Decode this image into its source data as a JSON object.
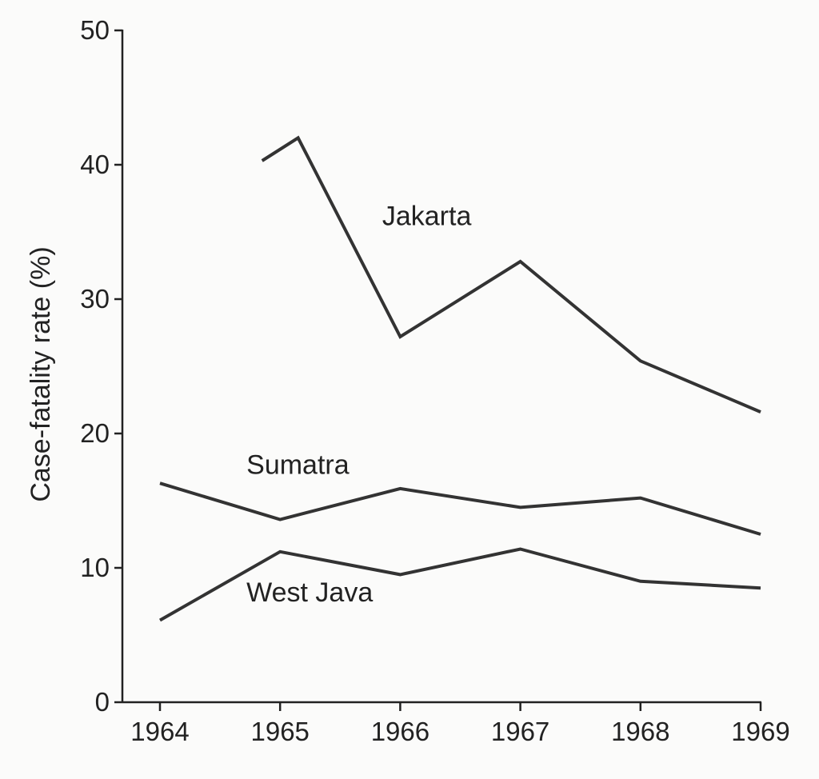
{
  "chart_data": {
    "type": "line",
    "title": "",
    "xlabel": "",
    "ylabel": "Case-fatality rate (%)",
    "x": [
      1964,
      1965,
      1966,
      1967,
      1968,
      1969
    ],
    "x_tick_labels": [
      "1964",
      "1965",
      "1966",
      "1967",
      "1968",
      "1969"
    ],
    "y_ticks": [
      0,
      10,
      20,
      30,
      40,
      50
    ],
    "y_tick_labels": [
      "0",
      "10",
      "20",
      "30",
      "40",
      "50"
    ],
    "xlim": [
      1964,
      1969
    ],
    "ylim": [
      0,
      50
    ],
    "grid": false,
    "legend": "none",
    "series": [
      {
        "name": "Jakarta",
        "color": "#333333",
        "points": [
          {
            "x": 1964.85,
            "y": 40.3
          },
          {
            "x": 1965.15,
            "y": 42.0
          },
          {
            "x": 1966.0,
            "y": 27.2
          },
          {
            "x": 1967.0,
            "y": 32.8
          },
          {
            "x": 1968.0,
            "y": 25.4
          },
          {
            "x": 1969.0,
            "y": 21.6
          }
        ]
      },
      {
        "name": "Sumatra",
        "color": "#333333",
        "points": [
          {
            "x": 1964.0,
            "y": 16.3
          },
          {
            "x": 1965.0,
            "y": 13.6
          },
          {
            "x": 1966.0,
            "y": 15.9
          },
          {
            "x": 1967.0,
            "y": 14.5
          },
          {
            "x": 1968.0,
            "y": 15.2
          },
          {
            "x": 1969.0,
            "y": 12.5
          }
        ]
      },
      {
        "name": "West Java",
        "color": "#333333",
        "points": [
          {
            "x": 1964.0,
            "y": 6.1
          },
          {
            "x": 1965.0,
            "y": 11.2
          },
          {
            "x": 1966.0,
            "y": 9.5
          },
          {
            "x": 1967.0,
            "y": 11.4
          },
          {
            "x": 1968.0,
            "y": 9.0
          },
          {
            "x": 1969.0,
            "y": 8.5
          }
        ]
      }
    ],
    "annotations": [
      {
        "text": "Jakarta",
        "x": 1965.85,
        "y": 35.5
      },
      {
        "text": "Sumatra",
        "x": 1964.72,
        "y": 17.0
      },
      {
        "text": "West Java",
        "x": 1964.72,
        "y": 7.5
      }
    ]
  }
}
